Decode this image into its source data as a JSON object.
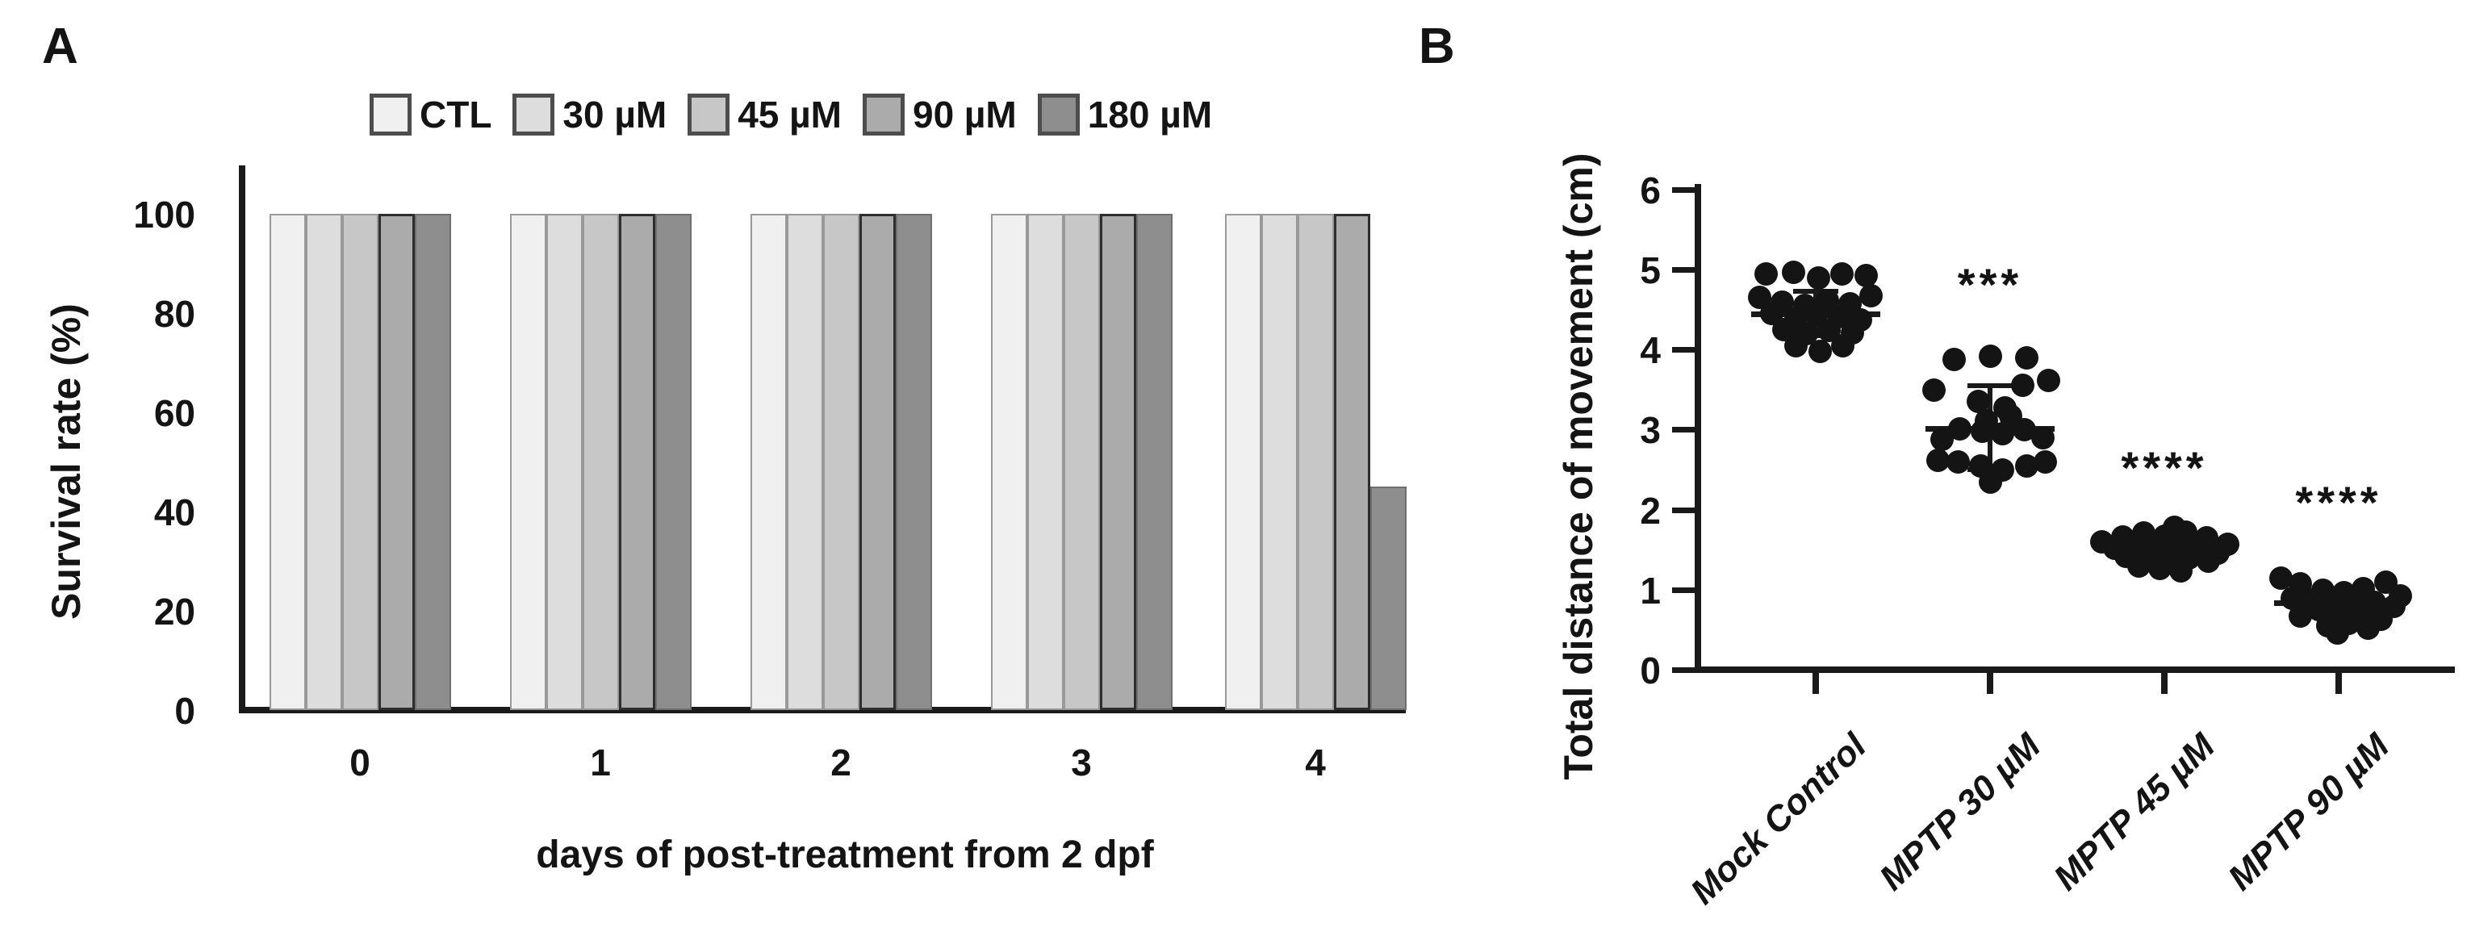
{
  "figure": {
    "panel_a_label": "A",
    "panel_b_label": "B"
  },
  "chart_data": [
    {
      "type": "bar",
      "panel": "A",
      "title": "",
      "xlabel": "days of post-treatment from 2 dpf",
      "ylabel": "Survival rate (%)",
      "categories": [
        "0",
        "1",
        "2",
        "3",
        "4"
      ],
      "y_ticks": [
        0,
        20,
        40,
        60,
        80,
        100
      ],
      "ylim": [
        0,
        110
      ],
      "grid": false,
      "legend_position": "top",
      "legend_swatch_border": "#4d4d4d",
      "series": [
        {
          "name": "CTL",
          "fill": "#f1f0f0",
          "border": "#999999",
          "values": [
            100,
            100,
            100,
            100,
            100
          ]
        },
        {
          "name": "30 µM",
          "fill": "#dddddd",
          "border": "#999999",
          "values": [
            100,
            100,
            100,
            100,
            100
          ]
        },
        {
          "name": "45 µM",
          "fill": "#c7c7c7",
          "border": "#999999",
          "values": [
            100,
            100,
            100,
            100,
            100
          ]
        },
        {
          "name": "90 µM",
          "fill": "#ababab",
          "border": "#2e2e2e",
          "values": [
            100,
            100,
            100,
            100,
            100
          ]
        },
        {
          "name": "180 µM",
          "fill": "#8e8e8e",
          "border": "#6f6f6f",
          "values": [
            100,
            100,
            100,
            100,
            45
          ]
        }
      ]
    },
    {
      "type": "scatter",
      "panel": "B",
      "title": "",
      "xlabel": "",
      "ylabel": "Total distance of movement (cm)",
      "categories": [
        "Mock Control",
        "MPTP 30 µM",
        "MPTP 45 µM",
        "MPTP 90 µM"
      ],
      "y_ticks": [
        0,
        1,
        2,
        3,
        4,
        5,
        6
      ],
      "ylim": [
        0,
        6
      ],
      "grid": false,
      "marker": "filled-circle",
      "marker_color": "#141414",
      "groups": [
        {
          "name": "Mock Control",
          "significance": "",
          "mean": 4.45,
          "err_high": 4.73,
          "err_low": 4.17,
          "points": [
            [
              -62,
              4.95
            ],
            [
              -28,
              4.97
            ],
            [
              3,
              4.9
            ],
            [
              32,
              4.95
            ],
            [
              62,
              4.93
            ],
            [
              -70,
              4.66
            ],
            [
              -42,
              4.6
            ],
            [
              -14,
              4.56
            ],
            [
              14,
              4.62
            ],
            [
              42,
              4.58
            ],
            [
              68,
              4.68
            ],
            [
              -55,
              4.46
            ],
            [
              -25,
              4.4
            ],
            [
              0,
              4.45
            ],
            [
              28,
              4.42
            ],
            [
              55,
              4.38
            ],
            [
              -40,
              4.26
            ],
            [
              -12,
              4.2
            ],
            [
              16,
              4.25
            ],
            [
              45,
              4.22
            ],
            [
              -25,
              4.05
            ],
            [
              5,
              3.98
            ],
            [
              33,
              4.05
            ]
          ]
        },
        {
          "name": "MPTP 30 µM",
          "significance": "***",
          "mean": 3.02,
          "err_high": 3.55,
          "err_low": 2.5,
          "points": [
            [
              -45,
              3.88
            ],
            [
              0,
              3.92
            ],
            [
              45,
              3.9
            ],
            [
              72,
              3.62
            ],
            [
              -70,
              3.5
            ],
            [
              40,
              3.56
            ],
            [
              -15,
              3.36
            ],
            [
              18,
              3.28
            ],
            [
              -5,
              3.12
            ],
            [
              25,
              3.18
            ],
            [
              -38,
              3.02
            ],
            [
              -10,
              2.98
            ],
            [
              15,
              2.95
            ],
            [
              42,
              3.0
            ],
            [
              -60,
              2.88
            ],
            [
              65,
              2.9
            ],
            [
              -65,
              2.62
            ],
            [
              -40,
              2.6
            ],
            [
              -12,
              2.55
            ],
            [
              15,
              2.5
            ],
            [
              45,
              2.55
            ],
            [
              68,
              2.6
            ],
            [
              0,
              2.35
            ]
          ]
        },
        {
          "name": "MPTP 45 µM",
          "significance": "****",
          "mean": 1.52,
          "err_high": 1.64,
          "err_low": 1.4,
          "points": [
            [
              -78,
              1.6
            ],
            [
              -52,
              1.66
            ],
            [
              -26,
              1.71
            ],
            [
              0,
              1.67
            ],
            [
              26,
              1.72
            ],
            [
              52,
              1.65
            ],
            [
              78,
              1.57
            ],
            [
              12,
              1.78
            ],
            [
              -62,
              1.52
            ],
            [
              -36,
              1.56
            ],
            [
              -10,
              1.52
            ],
            [
              16,
              1.55
            ],
            [
              42,
              1.5
            ],
            [
              66,
              1.46
            ],
            [
              -48,
              1.42
            ],
            [
              -22,
              1.4
            ],
            [
              4,
              1.44
            ],
            [
              30,
              1.4
            ],
            [
              54,
              1.36
            ],
            [
              -32,
              1.3
            ],
            [
              -6,
              1.27
            ],
            [
              20,
              1.24
            ]
          ]
        },
        {
          "name": "MPTP 90 µM",
          "significance": "****",
          "mean": 0.84,
          "err_high": 1.0,
          "err_low": 0.66,
          "points": [
            [
              -72,
              1.15
            ],
            [
              -48,
              1.08
            ],
            [
              58,
              1.1
            ],
            [
              30,
              1.02
            ],
            [
              -20,
              1.0
            ],
            [
              6,
              0.97
            ],
            [
              76,
              0.93
            ],
            [
              -58,
              0.9
            ],
            [
              -32,
              0.88
            ],
            [
              -6,
              0.86
            ],
            [
              18,
              0.88
            ],
            [
              44,
              0.85
            ],
            [
              68,
              0.8
            ],
            [
              -25,
              0.76
            ],
            [
              2,
              0.73
            ],
            [
              28,
              0.7
            ],
            [
              -48,
              0.68
            ],
            [
              52,
              0.64
            ],
            [
              12,
              0.58
            ],
            [
              -14,
              0.55
            ],
            [
              36,
              0.52
            ],
            [
              -2,
              0.46
            ]
          ]
        }
      ]
    }
  ]
}
